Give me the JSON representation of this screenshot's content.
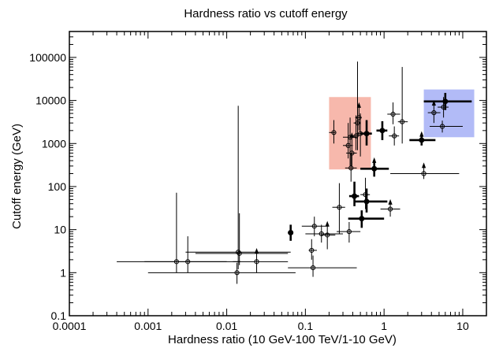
{
  "chart_data": {
    "type": "scatter",
    "title": "Hardness ratio vs cutoff energy",
    "xlabel": "Hardness ratio (10 GeV-100 TeV/1-10 GeV)",
    "ylabel": "Cutoff energy (GeV)",
    "xscale": "log",
    "yscale": "log",
    "xlim": [
      0.0001,
      20
    ],
    "ylim": [
      0.1,
      400000
    ],
    "xticks": [
      {
        "value": 0.0001,
        "label": "0.0001"
      },
      {
        "value": 0.001,
        "label": "0.001"
      },
      {
        "value": 0.01,
        "label": "0.01"
      },
      {
        "value": 0.1,
        "label": "0.1"
      },
      {
        "value": 1,
        "label": "1"
      },
      {
        "value": 10,
        "label": "10"
      }
    ],
    "yticks": [
      {
        "value": 0.1,
        "label": "0.1"
      },
      {
        "value": 1,
        "label": "1"
      },
      {
        "value": 10,
        "label": "10"
      },
      {
        "value": 100,
        "label": "100"
      },
      {
        "value": 1000,
        "label": "1000"
      },
      {
        "value": 10000,
        "label": "10000"
      },
      {
        "value": 100000,
        "label": "100000"
      }
    ],
    "regions": [
      {
        "name": "red-region",
        "x": [
          0.2,
          0.68
        ],
        "y": [
          250,
          12000
        ],
        "color": "#f4a090"
      },
      {
        "name": "blue-region",
        "x": [
          3.2,
          14
        ],
        "y": [
          1400,
          18000
        ],
        "color": "#98a4f4"
      }
    ],
    "series": [
      {
        "marker": "open",
        "points": [
          {
            "x": 0.0023,
            "y": 1.8,
            "xerr": [
              0.0004,
              0.015
            ],
            "yerr": [
              1,
              72
            ]
          },
          {
            "x": 0.0032,
            "y": 1.8,
            "xerr": [
              0.0009,
              0.01
            ],
            "yerr": [
              1,
              7
            ]
          },
          {
            "x": 0.014,
            "y": 3.0,
            "xerr": [
              0.003,
              0.065
            ],
            "yerr": [
              1.2,
              7500
            ]
          },
          {
            "x": 0.0145,
            "y": 2.8,
            "xerr": [
              0.004,
              0.06
            ],
            "yerr": [
              1.5,
              24
            ]
          },
          {
            "x": 0.0135,
            "y": 1.0,
            "xerr": [
              0.001,
              0.075
            ],
            "yerr": [
              0.55,
              1.7
            ]
          },
          {
            "x": 0.024,
            "y": 1.8,
            "xerr": [
              0.012,
              0.06
            ],
            "yerr": [
              1,
              3.3
            ],
            "uplimit": true
          },
          {
            "x": 0.12,
            "y": 3.3,
            "xerr": [
              0.11,
              0.14
            ],
            "yerr": [
              2,
              6
            ]
          },
          {
            "x": 0.13,
            "y": 12,
            "xerr": [
              0.09,
              0.2
            ],
            "yerr": [
              7,
              20
            ]
          },
          {
            "x": 0.125,
            "y": 1.3,
            "xerr": [
              0.06,
              0.45
            ],
            "yerr": [
              0.8,
              2.5
            ]
          },
          {
            "x": 0.16,
            "y": 8,
            "xerr": [
              0.1,
              0.3
            ],
            "yerr": [
              5,
              13
            ]
          },
          {
            "x": 0.19,
            "y": 7.5,
            "xerr": [
              0.16,
              0.24
            ],
            "yerr": [
              3.5,
              14
            ],
            "uplimit": true
          },
          {
            "x": 0.27,
            "y": 33,
            "xerr": [
              0.22,
              0.32
            ],
            "yerr": [
              8,
              120
            ]
          },
          {
            "x": 0.36,
            "y": 9,
            "xerr": [
              0.25,
              0.5
            ],
            "yerr": [
              5,
              15
            ]
          },
          {
            "x": 0.58,
            "y": 65,
            "xerr": [
              0.5,
              0.66
            ],
            "yerr": [
              30,
              160
            ]
          },
          {
            "x": 1.2,
            "y": 30,
            "xerr": [
              0.9,
              1.6
            ],
            "yerr": [
              20,
              45
            ],
            "uplimit": true
          },
          {
            "x": 3.2,
            "y": 200,
            "xerr": [
              1.2,
              9
            ],
            "yerr": [
              150,
              320
            ],
            "uplimit": true
          },
          {
            "x": 0.23,
            "y": 1800,
            "xerr": [
              0.2,
              0.24
            ],
            "yerr": [
              1000,
              3500
            ]
          },
          {
            "x": 0.35,
            "y": 900,
            "xerr": [
              0.3,
              0.4
            ],
            "yerr": [
              450,
              3000
            ]
          },
          {
            "x": 0.37,
            "y": 1400,
            "xerr": [
              0.3,
              0.45
            ],
            "yerr": [
              300,
              4000
            ]
          },
          {
            "x": 0.38,
            "y": 270,
            "xerr": [
              0.32,
              0.45
            ],
            "yerr": [
              130,
              600
            ]
          },
          {
            "x": 0.39,
            "y": 600,
            "xerr": [
              0.33,
              0.45
            ],
            "yerr": [
              300,
              1600
            ],
            "uplimit": true
          },
          {
            "x": 0.44,
            "y": 1500,
            "xerr": [
              0.4,
              0.48
            ],
            "yerr": [
              700,
              4500
            ]
          },
          {
            "x": 0.46,
            "y": 3000,
            "xerr": [
              0.41,
              0.5
            ],
            "yerr": [
              700,
              80000
            ]
          },
          {
            "x": 0.48,
            "y": 4000,
            "xerr": [
              0.43,
              0.52
            ],
            "yerr": [
              2000,
              8000
            ],
            "uplimit": true
          },
          {
            "x": 0.5,
            "y": 1700,
            "xerr": [
              0.45,
              0.55
            ],
            "yerr": [
              500,
              5000
            ]
          },
          {
            "x": 1.3,
            "y": 4800,
            "xerr": [
              1.1,
              1.6
            ],
            "yerr": [
              2800,
              9000
            ]
          },
          {
            "x": 1.35,
            "y": 1500,
            "xerr": [
              1.15,
              1.55
            ],
            "yerr": [
              900,
              2500
            ]
          },
          {
            "x": 1.7,
            "y": 3200,
            "xerr": [
              1.5,
              2.0
            ],
            "yerr": [
              1000,
              60000
            ]
          },
          {
            "x": 4.3,
            "y": 5200,
            "xerr": [
              3.6,
              5.2
            ],
            "yerr": [
              3000,
              9000
            ],
            "uplimit": true
          },
          {
            "x": 5.5,
            "y": 2500,
            "xerr": [
              3.8,
              10
            ],
            "yerr": [
              1800,
              3400
            ]
          },
          {
            "x": 5.7,
            "y": 7000,
            "xerr": [
              4.8,
              6.6
            ],
            "yerr": [
              4000,
              12000
            ]
          }
        ]
      },
      {
        "marker": "filled",
        "points": [
          {
            "x": 0.065,
            "y": 8.5,
            "xerr": [
              0.06,
              0.07
            ],
            "yerr": [
              5.5,
              13
            ]
          },
          {
            "x": 0.42,
            "y": 60,
            "xerr": [
              0.36,
              0.48
            ],
            "yerr": [
              35,
              130
            ]
          },
          {
            "x": 0.52,
            "y": 18,
            "xerr": [
              0.35,
              1.0
            ],
            "yerr": [
              11,
              28
            ]
          },
          {
            "x": 0.6,
            "y": 45,
            "xerr": [
              0.42,
              1.1
            ],
            "yerr": [
              25,
              90
            ]
          },
          {
            "x": 0.6,
            "y": 1700,
            "xerr": [
              0.5,
              0.7
            ],
            "yerr": [
              900,
              3500
            ]
          },
          {
            "x": 0.75,
            "y": 260,
            "xerr": [
              0.5,
              1.15
            ],
            "yerr": [
              170,
              420
            ],
            "uplimit": true
          },
          {
            "x": 0.95,
            "y": 2000,
            "xerr": [
              0.8,
              1.1
            ],
            "yerr": [
              1200,
              3300
            ]
          },
          {
            "x": 3.0,
            "y": 1200,
            "xerr": [
              2.1,
              4.5
            ],
            "yerr": [
              900,
              1700
            ],
            "uplimit": true
          },
          {
            "x": 6.0,
            "y": 9500,
            "xerr": [
              3.2,
              13
            ],
            "yerr": [
              6000,
              15000
            ]
          }
        ]
      }
    ],
    "legend": "none",
    "grid": false
  }
}
